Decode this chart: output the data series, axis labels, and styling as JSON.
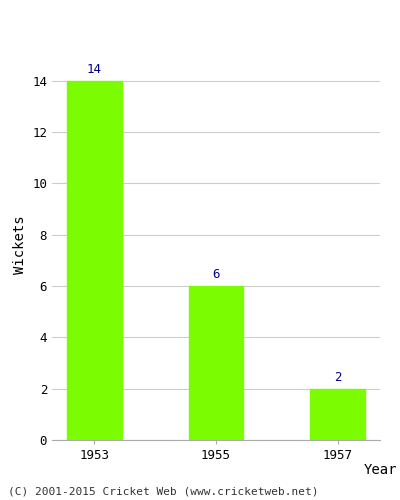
{
  "categories": [
    "1953",
    "1955",
    "1957"
  ],
  "values": [
    14,
    6,
    2
  ],
  "bar_color": "#7CFC00",
  "bar_edgecolor": "#7CFC00",
  "xlabel": "Year",
  "ylabel": "Wickets",
  "ylim": [
    0,
    15.2
  ],
  "yticks": [
    0,
    2,
    4,
    6,
    8,
    10,
    12,
    14
  ],
  "label_color": "#00008B",
  "label_fontsize": 9,
  "axis_label_fontsize": 10,
  "tick_fontsize": 9,
  "footer_text": "(C) 2001-2015 Cricket Web (www.cricketweb.net)",
  "footer_fontsize": 8,
  "background_color": "#ffffff",
  "grid_color": "#cccccc",
  "bar_width": 0.45
}
